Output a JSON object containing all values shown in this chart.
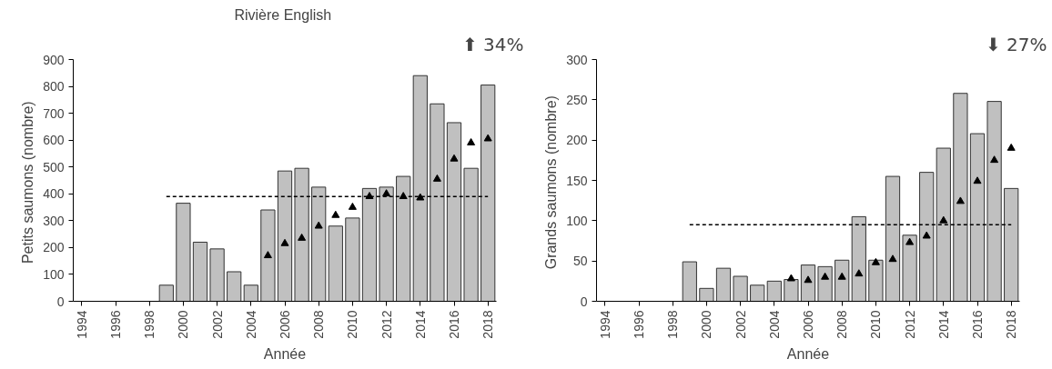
{
  "chart_data": [
    {
      "type": "bar",
      "title": "Rivière  English",
      "xlabel": "Année",
      "ylabel": "Petits saumons  (nombre)",
      "annotations": [
        "⬆ 34%"
      ],
      "x": [
        1999,
        2000,
        2001,
        2002,
        2003,
        2004,
        2005,
        2006,
        2007,
        2008,
        2009,
        2010,
        2011,
        2012,
        2013,
        2014,
        2015,
        2016,
        2017,
        2018
      ],
      "series": [
        {
          "color": "#c0c0c0",
          "values": [
            60,
            365,
            220,
            195,
            110,
            60,
            340,
            485,
            495,
            425,
            280,
            310,
            420,
            425,
            465,
            840,
            735,
            665,
            495,
            805
          ]
        },
        {
          "type": "scatter",
          "color": "#000000",
          "marker": "triangle",
          "x": [
            2005,
            2006,
            2007,
            2008,
            2009,
            2010,
            2011,
            2012,
            2013,
            2014,
            2015,
            2016,
            2017,
            2018
          ],
          "values": [
            170,
            215,
            235,
            280,
            320,
            350,
            390,
            400,
            390,
            385,
            455,
            530,
            590,
            605
          ]
        },
        {
          "type": "line",
          "color": "#000000",
          "line_style": "dashed",
          "x": [
            1999,
            2018
          ],
          "values": [
            390,
            390
          ]
        }
      ],
      "xlim": [
        1993.5,
        2018.5
      ],
      "xticks": [
        1994,
        1996,
        1998,
        2000,
        2002,
        2004,
        2006,
        2008,
        2010,
        2012,
        2014,
        2016,
        2018
      ],
      "ylim": [
        0,
        900
      ],
      "yticks": [
        0,
        100,
        200,
        300,
        400,
        500,
        600,
        700,
        800,
        900
      ],
      "grid": false
    },
    {
      "type": "bar",
      "xlabel": "Année",
      "ylabel": "Grands saumons  (nombre)",
      "annotations": [
        "⬇ 27%"
      ],
      "x": [
        1999,
        2000,
        2001,
        2002,
        2003,
        2004,
        2005,
        2006,
        2007,
        2008,
        2009,
        2010,
        2011,
        2012,
        2013,
        2014,
        2015,
        2016,
        2017,
        2018
      ],
      "series": [
        {
          "color": "#c0c0c0",
          "values": [
            49,
            16,
            41,
            31,
            20,
            25,
            27,
            45,
            43,
            51,
            105,
            51,
            155,
            82,
            160,
            190,
            258,
            208,
            248,
            140
          ]
        },
        {
          "type": "scatter",
          "color": "#000000",
          "marker": "triangle",
          "x": [
            2005,
            2006,
            2007,
            2008,
            2009,
            2010,
            2011,
            2012,
            2013,
            2014,
            2015,
            2016,
            2017,
            2018
          ],
          "values": [
            28,
            26,
            30,
            30,
            34,
            48,
            52,
            73,
            81,
            100,
            124,
            149,
            175,
            190
          ]
        },
        {
          "type": "line",
          "color": "#000000",
          "line_style": "dashed",
          "x": [
            1999,
            2018
          ],
          "values": [
            95,
            95
          ]
        }
      ],
      "xlim": [
        1993.5,
        2018.5
      ],
      "xticks": [
        1994,
        1996,
        1998,
        2000,
        2002,
        2004,
        2006,
        2008,
        2010,
        2012,
        2014,
        2016,
        2018
      ],
      "ylim": [
        0,
        300
      ],
      "yticks": [
        0,
        50,
        100,
        150,
        200,
        250,
        300
      ],
      "grid": false
    }
  ]
}
